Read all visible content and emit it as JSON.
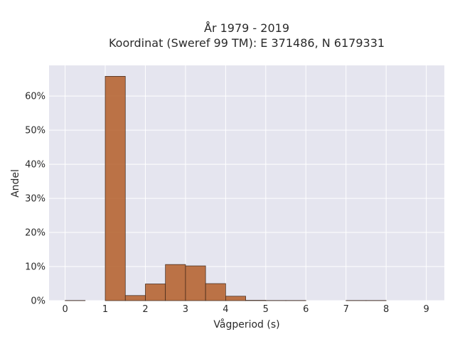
{
  "chart_data": {
    "type": "bar",
    "title_lines": [
      "År 1979 - 2019",
      "Koordinat (Sweref 99 TM): E 371486, N 6179331"
    ],
    "xlabel": "Vågperiod (s)",
    "ylabel": "Andel",
    "xlim": [
      -0.4,
      9.45
    ],
    "ylim": [
      0,
      69
    ],
    "x_ticks": [
      0,
      1,
      2,
      3,
      4,
      5,
      6,
      7,
      8,
      9
    ],
    "x_tick_labels": [
      "0",
      "1",
      "2",
      "3",
      "4",
      "5",
      "6",
      "7",
      "8",
      "9"
    ],
    "y_ticks": [
      0,
      10,
      20,
      30,
      40,
      50,
      60
    ],
    "y_tick_labels": [
      "0%",
      "10%",
      "20%",
      "30%",
      "40%",
      "50%",
      "60%"
    ],
    "grid": true,
    "bar_color": "#b5622f",
    "bin_width": 0.5,
    "bins": [
      {
        "x0": 0.0,
        "x1": 0.5,
        "value": 0.05
      },
      {
        "x0": 1.0,
        "x1": 1.5,
        "value": 65.8
      },
      {
        "x0": 1.5,
        "x1": 2.0,
        "value": 1.5
      },
      {
        "x0": 2.0,
        "x1": 2.5,
        "value": 4.9
      },
      {
        "x0": 2.5,
        "x1": 3.0,
        "value": 10.6
      },
      {
        "x0": 3.0,
        "x1": 3.5,
        "value": 10.2
      },
      {
        "x0": 3.5,
        "x1": 4.0,
        "value": 5.0
      },
      {
        "x0": 4.0,
        "x1": 4.5,
        "value": 1.3
      },
      {
        "x0": 4.5,
        "x1": 5.0,
        "value": 0.1
      },
      {
        "x0": 5.0,
        "x1": 5.5,
        "value": 0.05
      },
      {
        "x0": 5.5,
        "x1": 6.0,
        "value": 0.05
      },
      {
        "x0": 7.0,
        "x1": 7.5,
        "value": 0.05
      },
      {
        "x0": 7.5,
        "x1": 8.0,
        "value": 0.05
      }
    ]
  },
  "colors": {
    "plot_background": "#e5e5ef",
    "grid": "#ffffff",
    "bar_stroke": "#3a2418"
  }
}
